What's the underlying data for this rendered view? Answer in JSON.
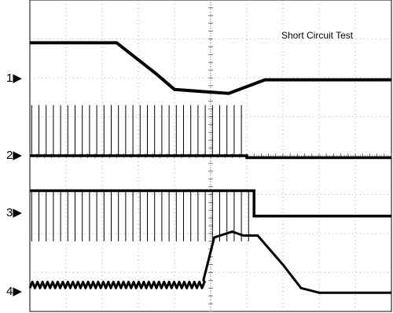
{
  "chart_data": {
    "type": "line",
    "title": "Short Circuit Test",
    "grid": true,
    "divisions": {
      "x": 10,
      "y": 8
    },
    "channel_labels": [
      "1",
      "2",
      "3",
      "4"
    ],
    "x_axis": {
      "unit": "div",
      "range": [
        0,
        10
      ]
    },
    "y_axis": {
      "unit": "div",
      "range": [
        0,
        8
      ]
    },
    "series": [
      {
        "x": [
          0,
          2.4,
          3.5,
          4.0,
          5.5,
          6.5,
          10
        ],
        "y": [
          6.9,
          6.9,
          6.1,
          5.7,
          5.6,
          5.95,
          5.95
        ]
      },
      {
        "x": [
          0,
          6.0,
          6.0,
          10
        ],
        "y": [
          4.0,
          4.0,
          3.95,
          3.95
        ],
        "pulses": {
          "x_start": 0.05,
          "x_end": 5.98,
          "period": 0.2,
          "amplitude_div": 1.3
        }
      },
      {
        "x": [
          0,
          6.2,
          6.2,
          10
        ],
        "y": [
          3.1,
          3.1,
          2.45,
          2.45
        ],
        "pulses": {
          "x_start": 0.05,
          "x_end": 6.1,
          "period": 0.2,
          "depth_div": 1.3
        }
      },
      {
        "x": [
          0,
          4.8,
          5.1,
          5.6,
          5.9,
          6.3,
          7.0,
          7.5,
          8.0,
          10
        ],
        "y": [
          0.68,
          0.8,
          1.9,
          2.05,
          1.95,
          1.95,
          1.2,
          0.6,
          0.48,
          0.48
        ]
      }
    ]
  }
}
